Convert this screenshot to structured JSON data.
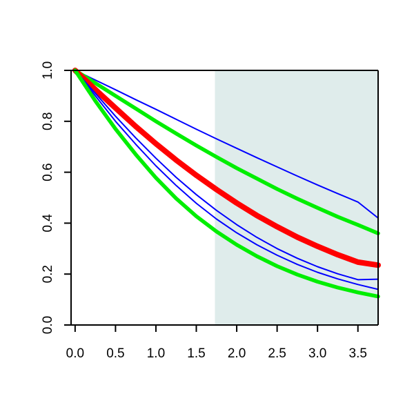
{
  "chart_data": {
    "type": "line",
    "title": "",
    "xlabel": "",
    "ylabel": "",
    "xlim": [
      -0.05,
      3.75
    ],
    "ylim": [
      0.0,
      1.0
    ],
    "x_ticks": [
      0.0,
      0.5,
      1.0,
      1.5,
      2.0,
      2.5,
      3.0,
      3.5
    ],
    "x_tick_labels": [
      "0.0",
      "0.5",
      "1.0",
      "1.5",
      "2.0",
      "2.5",
      "3.0",
      "3.5"
    ],
    "y_ticks": [
      0.0,
      0.2,
      0.4,
      0.6,
      0.8,
      1.0
    ],
    "y_tick_labels": [
      "0.0",
      "0.2",
      "0.4",
      "0.6",
      "0.8",
      "1.0"
    ],
    "grid": false,
    "shaded_region": {
      "x_start": 1.73,
      "x_end": 3.75,
      "color": "#dfeceb"
    },
    "x": [
      0.0,
      0.25,
      0.5,
      0.75,
      1.0,
      1.25,
      1.5,
      1.75,
      2.0,
      2.25,
      2.5,
      2.75,
      3.0,
      3.25,
      3.5,
      3.75
    ],
    "series": [
      {
        "color": "#0000ff",
        "style": "thin",
        "values": [
          1.0,
          0.962,
          0.924,
          0.885,
          0.847,
          0.808,
          0.769,
          0.731,
          0.694,
          0.657,
          0.621,
          0.585,
          0.55,
          0.516,
          0.483,
          0.42
        ]
      },
      {
        "color": "#00ee00",
        "style": "thick",
        "values": [
          1.0,
          0.95,
          0.9,
          0.85,
          0.8,
          0.752,
          0.705,
          0.66,
          0.616,
          0.575,
          0.534,
          0.496,
          0.46,
          0.425,
          0.393,
          0.36
        ]
      },
      {
        "color": "#ff0000",
        "style": "thickest",
        "values": [
          1.0,
          0.925,
          0.852,
          0.78,
          0.712,
          0.648,
          0.588,
          0.532,
          0.479,
          0.43,
          0.386,
          0.345,
          0.309,
          0.276,
          0.247,
          0.235
        ]
      },
      {
        "color": "#0000ff",
        "style": "thin",
        "values": [
          1.0,
          0.91,
          0.82,
          0.735,
          0.655,
          0.58,
          0.512,
          0.45,
          0.394,
          0.344,
          0.3,
          0.262,
          0.229,
          0.201,
          0.178,
          0.18
        ]
      },
      {
        "color": "#0000ff",
        "style": "thin",
        "values": [
          1.0,
          0.9,
          0.8,
          0.71,
          0.625,
          0.548,
          0.478,
          0.416,
          0.362,
          0.315,
          0.274,
          0.238,
          0.207,
          0.181,
          0.159,
          0.14
        ]
      },
      {
        "color": "#00ee00",
        "style": "thick",
        "values": [
          1.0,
          0.88,
          0.77,
          0.67,
          0.578,
          0.497,
          0.427,
          0.367,
          0.315,
          0.27,
          0.231,
          0.198,
          0.17,
          0.147,
          0.128,
          0.112
        ]
      }
    ]
  }
}
